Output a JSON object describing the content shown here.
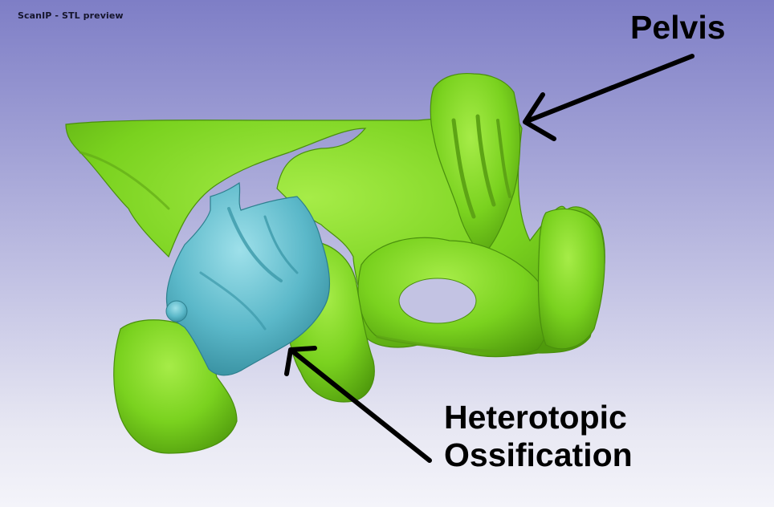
{
  "window": {
    "title": "ScanIP - STL preview"
  },
  "annotations": {
    "pelvis_label": "Pelvis",
    "ho_label_line1": "Heterotopic",
    "ho_label_line2": "Ossification"
  },
  "colors": {
    "pelvis_model": "#7ed321",
    "ossification_model": "#5bb9c9",
    "annotation_text": "#000000",
    "background_top": "#7e7ec6",
    "background_bottom": "#f4f4fa"
  }
}
